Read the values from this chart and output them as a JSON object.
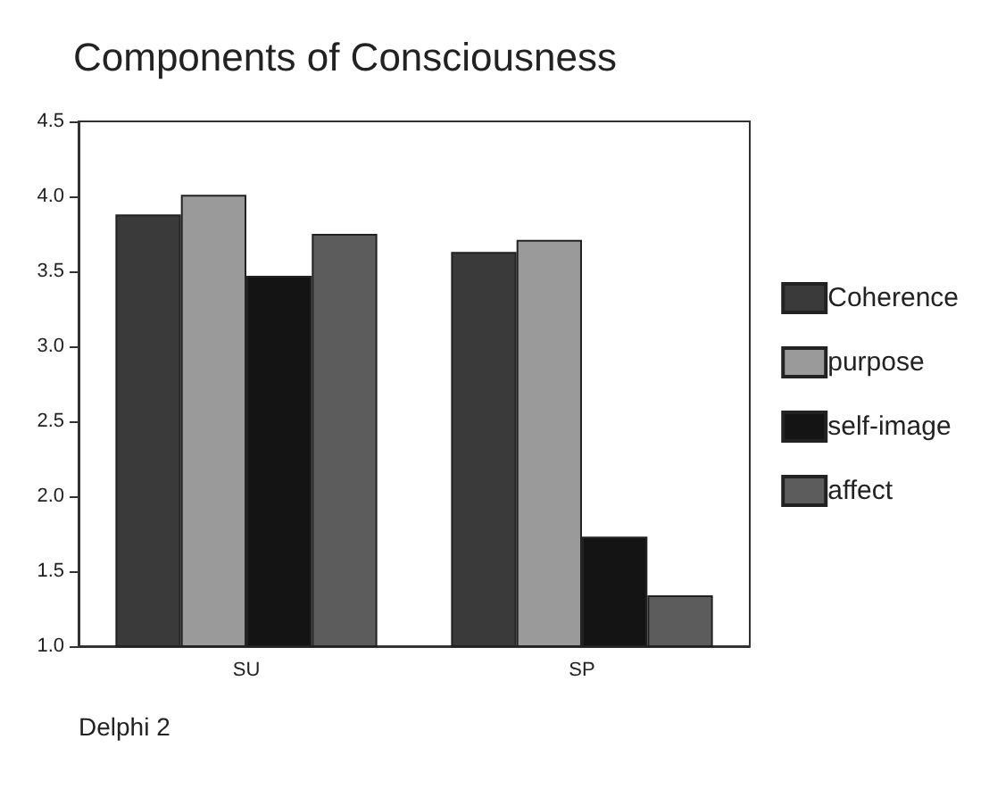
{
  "chart_data": {
    "type": "bar",
    "title": "Components of Consciousness",
    "categories": [
      "SU",
      "SP"
    ],
    "series": [
      {
        "name": "Coherence",
        "color": "#3a3a3a",
        "values": [
          3.88,
          3.63
        ]
      },
      {
        "name": "purpose",
        "color": "#9a9a9a",
        "values": [
          4.01,
          3.71
        ]
      },
      {
        "name": "self-image",
        "color": "#141414",
        "values": [
          3.47,
          1.73
        ]
      },
      {
        "name": "affect",
        "color": "#5c5c5c",
        "values": [
          3.75,
          1.34
        ]
      }
    ],
    "ylim": [
      1,
      4.5
    ],
    "yticks": [
      {
        "value": 1,
        "label": "1.0"
      },
      {
        "value": 1.5,
        "label": "1.5"
      },
      {
        "value": 2,
        "label": "2.0"
      },
      {
        "value": 2.5,
        "label": "2.5"
      },
      {
        "value": 3,
        "label": "3.0"
      },
      {
        "value": 3.5,
        "label": "3.5"
      },
      {
        "value": 4,
        "label": "4.0"
      },
      {
        "value": 4.5,
        "label": "4.5"
      }
    ],
    "grid": false,
    "legend": "right",
    "annotations": [
      "Delphi 2"
    ]
  }
}
